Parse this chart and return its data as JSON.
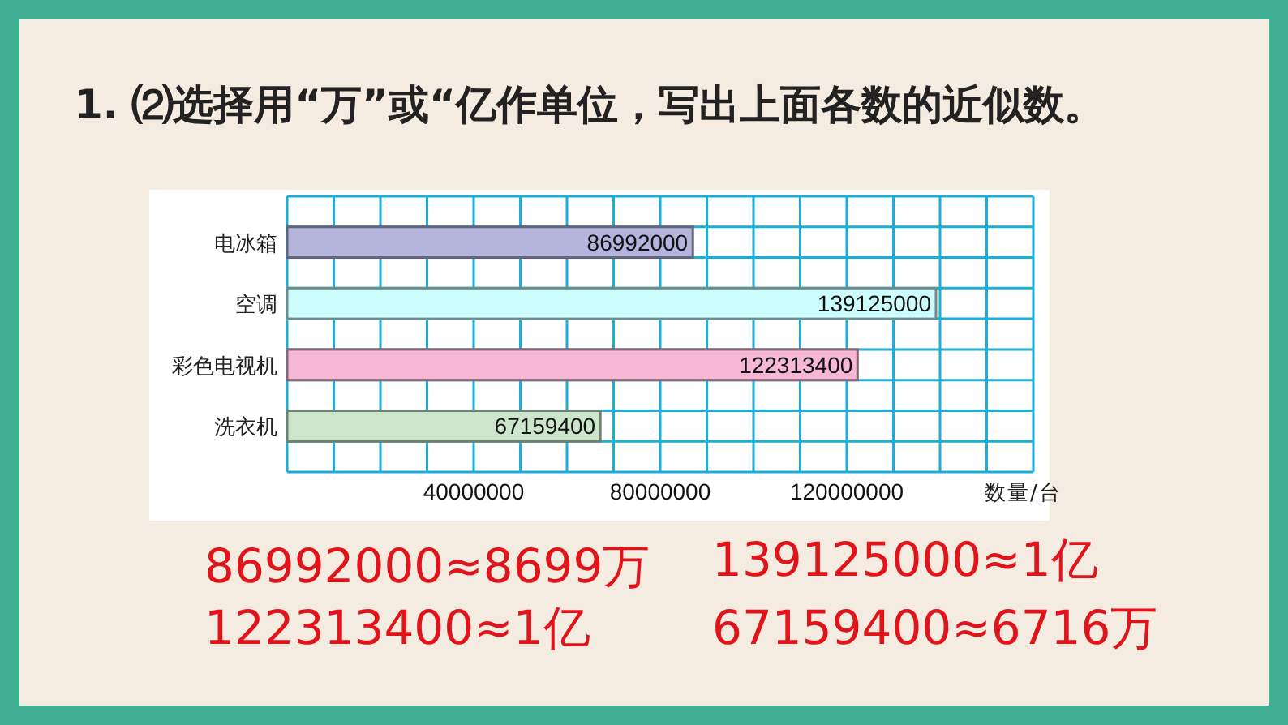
{
  "chart_data": {
    "type": "bar",
    "orientation": "horizontal",
    "title": "1. ⑵选择用“万”或“亿作单位，写出上面各数的近似数。",
    "categories": [
      "电冰箱",
      "空调",
      "彩色电视机",
      "洗衣机"
    ],
    "values": [
      86992000,
      139125000,
      122313400,
      67159400
    ],
    "colors": [
      "#b4b4dc",
      "#ccfcfc",
      "#f6b8d4",
      "#cce6cc"
    ],
    "data_labels": true,
    "xlabel": "数量/台",
    "xlim": [
      0,
      160000000
    ],
    "xticks": [
      {
        "value": 0,
        "label": null
      },
      {
        "value": 10000000,
        "label": null
      },
      {
        "value": 20000000,
        "label": null
      },
      {
        "value": 30000000,
        "label": null
      },
      40000000,
      {
        "value": 50000000,
        "label": null
      },
      {
        "value": 60000000,
        "label": null
      },
      {
        "value": 70000000,
        "label": null
      },
      80000000,
      {
        "value": 90000000,
        "label": null
      },
      {
        "value": 100000000,
        "label": null
      },
      {
        "value": 110000000,
        "label": null
      },
      120000000,
      {
        "value": 130000000,
        "label": null
      },
      {
        "value": 140000000,
        "label": null
      },
      {
        "value": 150000000,
        "label": null
      },
      {
        "value": 160000000,
        "label": null
      }
    ],
    "grid": true,
    "annotations": [
      "86992000≈8699万",
      "139125000≈1亿",
      "122313400≈1亿",
      "67159400≈6716万"
    ]
  }
}
